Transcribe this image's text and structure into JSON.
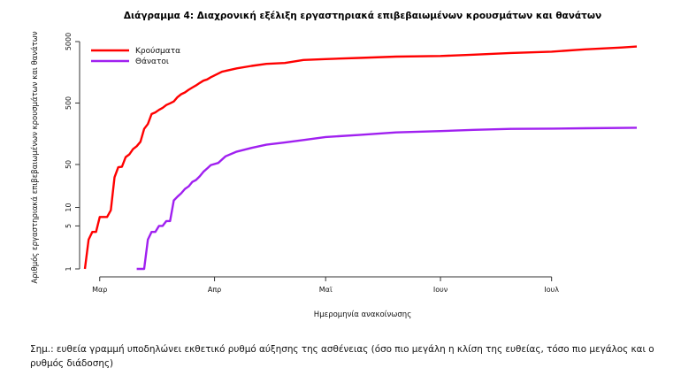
{
  "chart_data": {
    "type": "line",
    "title": "Διάγραμμα 4: Διαχρονική εξέλιξη εργαστηριακά επιβεβαιωμένων κρουσμάτων και θανάτων",
    "xlabel": "Ημερομηνία ανακοίνωσης",
    "ylabel": "Αριθμός εργαστηριακά επιβεβαιωμένων κρουσμάτων και θανάτων",
    "y_scale": "log",
    "ylim": [
      1,
      5000
    ],
    "yticks": [
      1,
      5,
      10,
      50,
      500,
      5000
    ],
    "xlim": [
      "2020-02-26",
      "2020-07-24"
    ],
    "xticks": [
      {
        "date": "2020-03-01",
        "label": "Μαρ"
      },
      {
        "date": "2020-04-01",
        "label": "Απρ"
      },
      {
        "date": "2020-05-01",
        "label": "Μαϊ"
      },
      {
        "date": "2020-06-01",
        "label": "Ιουν"
      },
      {
        "date": "2020-07-01",
        "label": "Ιουλ"
      }
    ],
    "grid": false,
    "legend_position": "top-left",
    "series": [
      {
        "name": "Κρούσματα",
        "color": "#ff0000",
        "points": [
          [
            "2020-02-26",
            1
          ],
          [
            "2020-02-27",
            3
          ],
          [
            "2020-02-28",
            4
          ],
          [
            "2020-02-29",
            4
          ],
          [
            "2020-03-01",
            7
          ],
          [
            "2020-03-02",
            7
          ],
          [
            "2020-03-03",
            7
          ],
          [
            "2020-03-04",
            9
          ],
          [
            "2020-03-05",
            31
          ],
          [
            "2020-03-06",
            45
          ],
          [
            "2020-03-07",
            46
          ],
          [
            "2020-03-08",
            66
          ],
          [
            "2020-03-09",
            73
          ],
          [
            "2020-03-10",
            89
          ],
          [
            "2020-03-11",
            99
          ],
          [
            "2020-03-12",
            117
          ],
          [
            "2020-03-13",
            190
          ],
          [
            "2020-03-14",
            228
          ],
          [
            "2020-03-15",
            331
          ],
          [
            "2020-03-16",
            352
          ],
          [
            "2020-03-17",
            387
          ],
          [
            "2020-03-18",
            418
          ],
          [
            "2020-03-19",
            464
          ],
          [
            "2020-03-20",
            495
          ],
          [
            "2020-03-21",
            530
          ],
          [
            "2020-03-22",
            624
          ],
          [
            "2020-03-23",
            695
          ],
          [
            "2020-03-24",
            743
          ],
          [
            "2020-03-25",
            821
          ],
          [
            "2020-03-26",
            892
          ],
          [
            "2020-03-27",
            966
          ],
          [
            "2020-03-28",
            1061
          ],
          [
            "2020-03-29",
            1156
          ],
          [
            "2020-03-30",
            1212
          ],
          [
            "2020-03-31",
            1314
          ],
          [
            "2020-04-03",
            1613
          ],
          [
            "2020-04-07",
            1832
          ],
          [
            "2020-04-11",
            2011
          ],
          [
            "2020-04-15",
            2170
          ],
          [
            "2020-04-20",
            2245
          ],
          [
            "2020-04-25",
            2506
          ],
          [
            "2020-05-01",
            2591
          ],
          [
            "2020-05-10",
            2710
          ],
          [
            "2020-05-20",
            2850
          ],
          [
            "2020-06-01",
            2918
          ],
          [
            "2020-06-10",
            3058
          ],
          [
            "2020-06-20",
            3266
          ],
          [
            "2020-07-01",
            3432
          ],
          [
            "2020-07-10",
            3732
          ],
          [
            "2020-07-20",
            4007
          ],
          [
            "2020-07-24",
            4150
          ]
        ]
      },
      {
        "name": "Θάνατοι",
        "color": "#a020f0",
        "points": [
          [
            "2020-03-11",
            1
          ],
          [
            "2020-03-12",
            1
          ],
          [
            "2020-03-13",
            1
          ],
          [
            "2020-03-14",
            3
          ],
          [
            "2020-03-15",
            4
          ],
          [
            "2020-03-16",
            4
          ],
          [
            "2020-03-17",
            5
          ],
          [
            "2020-03-18",
            5
          ],
          [
            "2020-03-19",
            6
          ],
          [
            "2020-03-20",
            6
          ],
          [
            "2020-03-21",
            13
          ],
          [
            "2020-03-22",
            15
          ],
          [
            "2020-03-23",
            17
          ],
          [
            "2020-03-24",
            20
          ],
          [
            "2020-03-25",
            22
          ],
          [
            "2020-03-26",
            26
          ],
          [
            "2020-03-27",
            28
          ],
          [
            "2020-03-28",
            32
          ],
          [
            "2020-03-29",
            38
          ],
          [
            "2020-03-30",
            43
          ],
          [
            "2020-03-31",
            49
          ],
          [
            "2020-04-02",
            53
          ],
          [
            "2020-04-04",
            68
          ],
          [
            "2020-04-07",
            81
          ],
          [
            "2020-04-11",
            93
          ],
          [
            "2020-04-15",
            105
          ],
          [
            "2020-04-20",
            114
          ],
          [
            "2020-04-25",
            125
          ],
          [
            "2020-05-01",
            140
          ],
          [
            "2020-05-10",
            151
          ],
          [
            "2020-05-20",
            166
          ],
          [
            "2020-06-01",
            175
          ],
          [
            "2020-06-10",
            183
          ],
          [
            "2020-06-20",
            190
          ],
          [
            "2020-07-01",
            192
          ],
          [
            "2020-07-10",
            194
          ],
          [
            "2020-07-24",
            198
          ]
        ]
      }
    ]
  },
  "note": "Σημ.: ευθεία γραμμή υποδηλώνει εκθετικό ρυθμό αύξησης της ασθένειας (όσο πιο μεγάλη η κλίση της ευθείας, τόσο πιο μεγάλος και ο ρυθμός διάδοσης)"
}
